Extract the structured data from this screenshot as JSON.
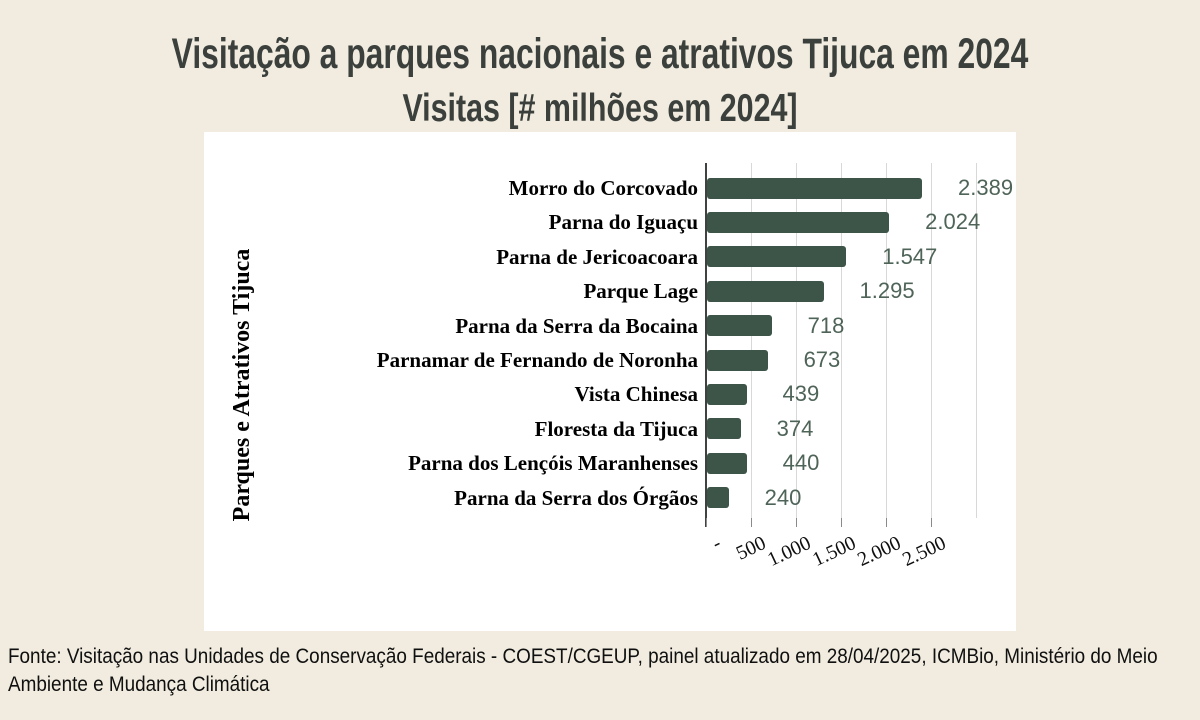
{
  "page": {
    "background_color": "#f1ecdf",
    "title": "Visitação a parques nacionais e atrativos Tijuca em 2024",
    "subtitle": "Visitas [# milhões em 2024]",
    "source_note": "Fonte: Visitação nas Unidades de Conservação Federais - COEST/CGEUP, painel atualizado em 28/04/2025, ICMBio, Ministério do Meio Ambiente e Mudança Climática"
  },
  "chart_data": {
    "type": "bar",
    "orientation": "horizontal",
    "title": "Visitação a parques nacionais e atrativos Tijuca em 2024",
    "subtitle": "Visitas [# milhões em 2024]",
    "ylabel": "Parques e Atrativos Tijuca",
    "xlabel": "",
    "categories": [
      "Morro do Corcovado",
      "Parna do Iguaçu",
      "Parna de Jericoacoara",
      "Parque Lage",
      "Parna da Serra da Bocaina",
      "Parnamar de Fernando de Noronha",
      "Vista Chinesa",
      "Floresta da Tijuca",
      "Parna dos Lençóis Maranhenses",
      "Parna da Serra dos Órgãos"
    ],
    "values": [
      2389,
      2024,
      1547,
      1295,
      718,
      673,
      439,
      374,
      440,
      240
    ],
    "value_labels": [
      "2.389",
      "2.024",
      "1.547",
      "1.295",
      "718",
      "673",
      "439",
      "374",
      "440",
      "240"
    ],
    "x_tick_labels": [
      "-",
      "500",
      "1.000",
      "1.500",
      "2.000",
      "2.500"
    ],
    "x_tick_values": [
      0,
      500,
      1000,
      1500,
      2000,
      2500
    ],
    "x_grid_values": [
      500,
      1000,
      1500,
      2000,
      2500,
      3000
    ],
    "xlim": [
      0,
      3000
    ],
    "grid": true,
    "legend": false,
    "bar_color": "#3d5448",
    "value_label_color": "#4f6458",
    "gridline_color": "#d8d8d8",
    "axis_color": "#3f4240"
  }
}
